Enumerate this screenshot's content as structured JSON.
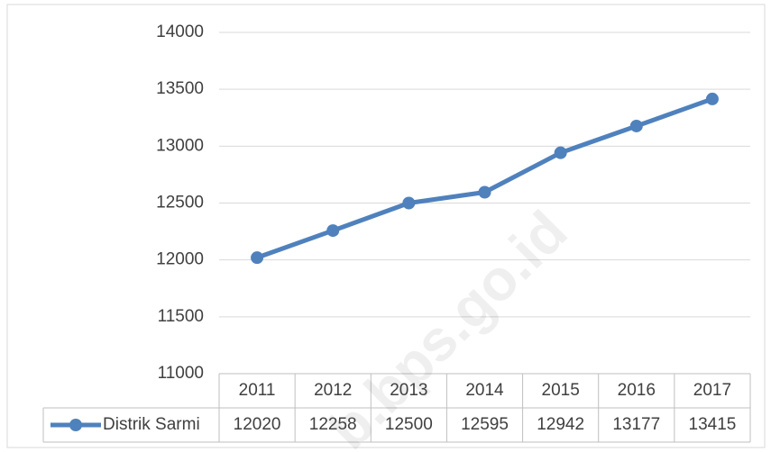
{
  "chart_data": {
    "type": "line",
    "categories": [
      "2011",
      "2012",
      "2013",
      "2014",
      "2015",
      "2016",
      "2017"
    ],
    "series": [
      {
        "name": "Distrik Sarmi",
        "color": "#4f81bd",
        "values": [
          12020,
          12258,
          12500,
          12595,
          12942,
          13177,
          13415
        ]
      }
    ],
    "ylim": [
      11000,
      14000
    ],
    "yticks": [
      11000,
      11500,
      12000,
      12500,
      13000,
      13500,
      14000
    ],
    "grid": true,
    "watermark": "b.bps.go.id"
  }
}
